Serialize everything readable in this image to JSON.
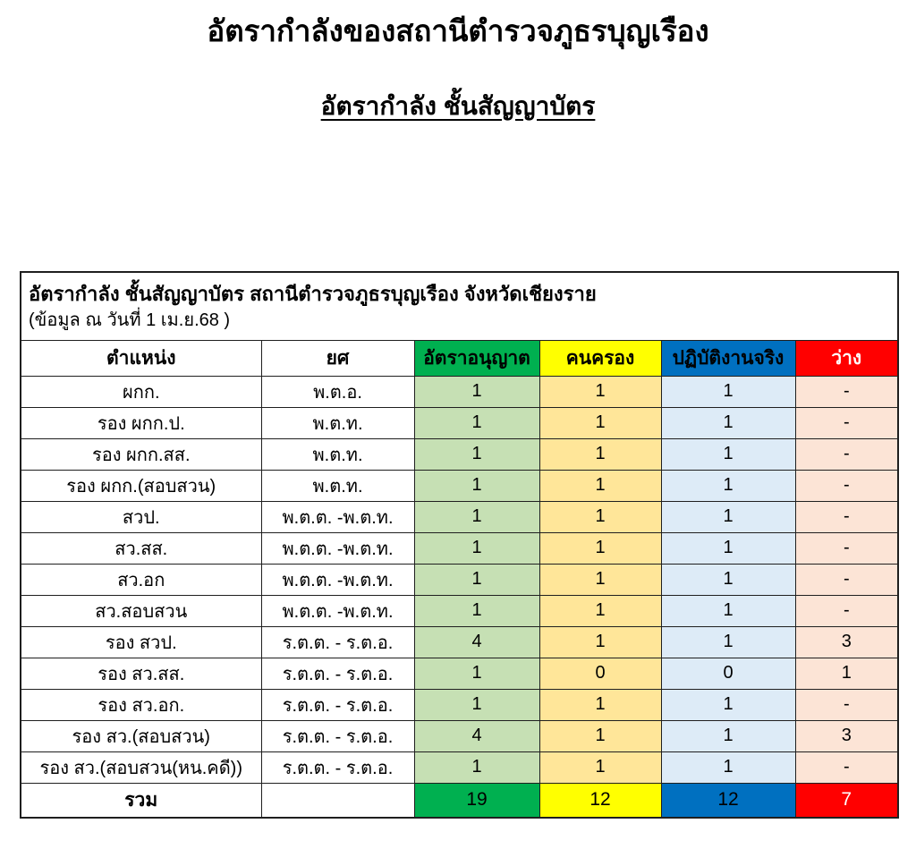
{
  "page": {
    "title": "อัตรากำลังของสถานีตำรวจภูธรบุญเรือง",
    "subtitle": "อัตรากำลัง ชั้นสัญญาบัตร"
  },
  "table": {
    "caption_line1": "อัตรากำลัง ชั้นสัญญาบัตร สถานีตำรวจภูธรบุญเรือง จังหวัดเชียงราย",
    "caption_line2": "(ข้อมูล ณ วันที่ 1 เม.ย.68 )",
    "columns": [
      {
        "label": "ตำแหน่ง"
      },
      {
        "label": "ยศ"
      },
      {
        "label": "อัตราอนุญาต"
      },
      {
        "label": "คนครอง"
      },
      {
        "label": "ปฏิบัติงานจริง"
      },
      {
        "label": "ว่าง"
      }
    ],
    "rows": [
      {
        "position": "ผกก.",
        "rank": "พ.ต.อ.",
        "authorized": "1",
        "occupied": "1",
        "working": "1",
        "vacant": "-"
      },
      {
        "position": "รอง ผกก.ป.",
        "rank": "พ.ต.ท.",
        "authorized": "1",
        "occupied": "1",
        "working": "1",
        "vacant": "-"
      },
      {
        "position": "รอง ผกก.สส.",
        "rank": "พ.ต.ท.",
        "authorized": "1",
        "occupied": "1",
        "working": "1",
        "vacant": "-"
      },
      {
        "position": "รอง ผกก.(สอบสวน)",
        "rank": "พ.ต.ท.",
        "authorized": "1",
        "occupied": "1",
        "working": "1",
        "vacant": "-"
      },
      {
        "position": "สวป.",
        "rank": "พ.ต.ต. -พ.ต.ท.",
        "authorized": "1",
        "occupied": "1",
        "working": "1",
        "vacant": "-"
      },
      {
        "position": "สว.สส.",
        "rank": "พ.ต.ต. -พ.ต.ท.",
        "authorized": "1",
        "occupied": "1",
        "working": "1",
        "vacant": "-"
      },
      {
        "position": "สว.อก",
        "rank": "พ.ต.ต. -พ.ต.ท.",
        "authorized": "1",
        "occupied": "1",
        "working": "1",
        "vacant": "-"
      },
      {
        "position": "สว.สอบสวน",
        "rank": "พ.ต.ต. -พ.ต.ท.",
        "authorized": "1",
        "occupied": "1",
        "working": "1",
        "vacant": "-"
      },
      {
        "position": "รอง สวป.",
        "rank": "ร.ต.ต. - ร.ต.อ.",
        "authorized": "4",
        "occupied": "1",
        "working": "1",
        "vacant": "3"
      },
      {
        "position": "รอง สว.สส.",
        "rank": "ร.ต.ต. - ร.ต.อ.",
        "authorized": "1",
        "occupied": "0",
        "working": "0",
        "vacant": "1"
      },
      {
        "position": "รอง สว.อก.",
        "rank": "ร.ต.ต. - ร.ต.อ.",
        "authorized": "1",
        "occupied": "1",
        "working": "1",
        "vacant": "-"
      },
      {
        "position": "รอง สว.(สอบสวน)",
        "rank": "ร.ต.ต. - ร.ต.อ.",
        "authorized": "4",
        "occupied": "1",
        "working": "1",
        "vacant": "3"
      },
      {
        "position": "รอง สว.(สอบสวน(หน.คดี))",
        "rank": "ร.ต.ต. - ร.ต.อ.",
        "authorized": "1",
        "occupied": "1",
        "working": "1",
        "vacant": "-"
      }
    ],
    "total": {
      "label": "รวม",
      "rank": "",
      "authorized": "19",
      "occupied": "12",
      "working": "12",
      "vacant": "7"
    }
  },
  "colors": {
    "header_authorized": "#00B050",
    "header_occupied": "#FFFF00",
    "header_working": "#0070C0",
    "header_vacant": "#FF0000",
    "cell_authorized": "#C6E0B4",
    "cell_occupied": "#FFE699",
    "cell_working": "#DDEBF7",
    "cell_vacant": "#FCE4D6",
    "border": "#1F1F1F"
  }
}
